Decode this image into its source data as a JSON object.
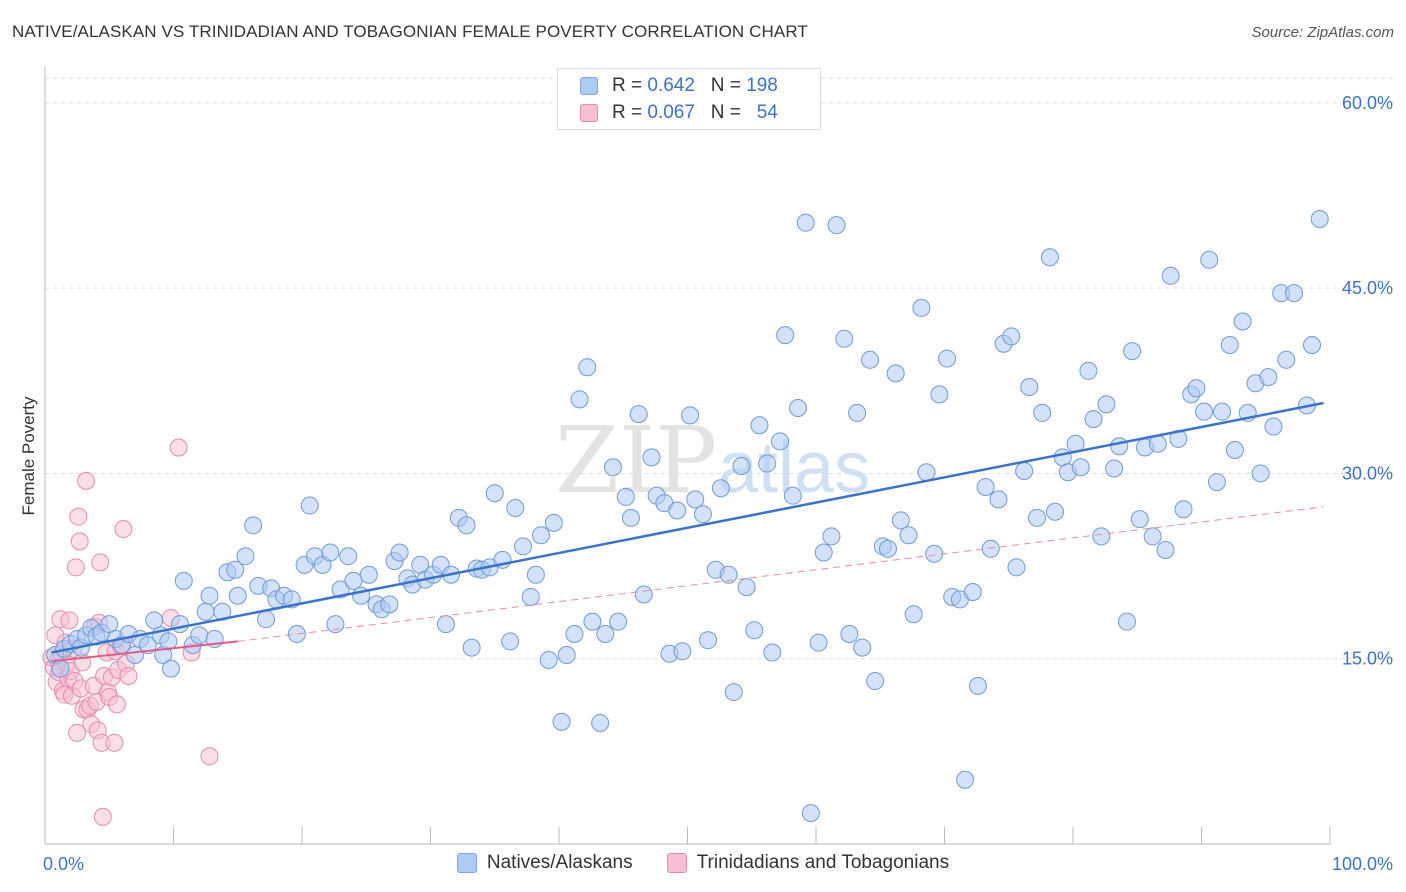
{
  "header": {
    "title": "NATIVE/ALASKAN VS TRINIDADIAN AND TOBAGONIAN FEMALE POVERTY CORRELATION CHART",
    "source": "Source: ZipAtlas.com"
  },
  "legend": {
    "rows": [
      {
        "r_label": "R =",
        "r_value": "0.642",
        "n_label": "N =",
        "n_value": "198",
        "color": "#aecbf2",
        "border": "#7ea6e0"
      },
      {
        "r_label": "R =",
        "r_value": "0.067",
        "n_label": "N =",
        "n_value": "54",
        "color": "#f7c0d2",
        "border": "#e98aab"
      }
    ]
  },
  "bottom_legend": {
    "items": [
      {
        "label": "Natives/Alaskans",
        "color": "#aecbf2",
        "border": "#7ea6e0"
      },
      {
        "label": "Trinidadians and Tobagonians",
        "color": "#f7c0d2",
        "border": "#e98aab"
      }
    ]
  },
  "watermark": {
    "zip": "ZIP",
    "atlas": "atlas"
  },
  "chart_data": {
    "type": "scatter",
    "title": "NATIVE/ALASKAN VS TRINIDADIAN AND TOBAGONIAN FEMALE POVERTY CORRELATION CHART",
    "xlabel": "",
    "ylabel": "Female Poverty",
    "xlim": [
      0,
      100
    ],
    "ylim": [
      0,
      62.5
    ],
    "x_tick_labels": [
      "0.0%",
      "100.0%"
    ],
    "y_ticks": [
      15,
      30,
      45,
      60
    ],
    "y_tick_labels": [
      "15.0%",
      "30.0%",
      "45.0%",
      "60.0%"
    ],
    "grid": true,
    "legend_position": "top-center",
    "colors": {
      "blue": "#3b73c8",
      "blue_fill": "#aecbf2",
      "pink": "#e05a8a",
      "pink_fill": "#f7c0d2",
      "axis_text": "#3b73c8"
    },
    "series": [
      {
        "name": "Natives/Alaskans",
        "r": 0.642,
        "n": 198,
        "trend": {
          "x": [
            0.5,
            99.5
          ],
          "y": [
            15.5,
            35.7
          ],
          "style": "solid"
        },
        "points": [
          [
            0.8,
            15.3
          ],
          [
            1.2,
            14.2
          ],
          [
            1.5,
            15.8
          ],
          [
            2.0,
            16.2
          ],
          [
            2.5,
            16.6
          ],
          [
            2.8,
            15.9
          ],
          [
            3.2,
            16.9
          ],
          [
            3.6,
            17.5
          ],
          [
            4.0,
            16.8
          ],
          [
            4.4,
            17.1
          ],
          [
            5.0,
            17.8
          ],
          [
            5.5,
            16.6
          ],
          [
            6.0,
            16.1
          ],
          [
            6.5,
            17.0
          ],
          [
            7.0,
            15.3
          ],
          [
            7.4,
            16.6
          ],
          [
            8.0,
            16.1
          ],
          [
            8.5,
            18.1
          ],
          [
            9.0,
            16.9
          ],
          [
            9.2,
            15.3
          ],
          [
            9.6,
            16.4
          ],
          [
            9.8,
            14.2
          ],
          [
            10.5,
            17.8
          ],
          [
            10.8,
            21.3
          ],
          [
            11.5,
            16.1
          ],
          [
            12.0,
            16.9
          ],
          [
            12.5,
            18.8
          ],
          [
            12.8,
            20.1
          ],
          [
            13.2,
            16.6
          ],
          [
            13.8,
            18.8
          ],
          [
            14.2,
            22.0
          ],
          [
            14.8,
            22.2
          ],
          [
            15.0,
            20.1
          ],
          [
            15.6,
            23.3
          ],
          [
            16.2,
            25.8
          ],
          [
            16.6,
            20.9
          ],
          [
            17.2,
            18.2
          ],
          [
            17.6,
            20.7
          ],
          [
            18.0,
            19.8
          ],
          [
            18.6,
            20.1
          ],
          [
            19.2,
            19.8
          ],
          [
            19.6,
            17.0
          ],
          [
            20.2,
            22.6
          ],
          [
            20.6,
            27.4
          ],
          [
            21.0,
            23.3
          ],
          [
            21.6,
            22.6
          ],
          [
            22.2,
            23.6
          ],
          [
            22.6,
            17.8
          ],
          [
            23.0,
            20.6
          ],
          [
            23.6,
            23.3
          ],
          [
            24.0,
            21.3
          ],
          [
            24.6,
            20.1
          ],
          [
            25.2,
            21.8
          ],
          [
            25.8,
            19.4
          ],
          [
            26.2,
            19.0
          ],
          [
            26.8,
            19.4
          ],
          [
            27.2,
            22.9
          ],
          [
            27.6,
            23.6
          ],
          [
            28.2,
            21.5
          ],
          [
            28.6,
            21.0
          ],
          [
            29.2,
            22.6
          ],
          [
            29.6,
            21.4
          ],
          [
            30.2,
            21.8
          ],
          [
            30.8,
            22.6
          ],
          [
            31.2,
            17.8
          ],
          [
            31.6,
            21.8
          ],
          [
            32.2,
            26.4
          ],
          [
            32.8,
            25.8
          ],
          [
            33.2,
            15.9
          ],
          [
            33.6,
            22.3
          ],
          [
            34.0,
            22.2
          ],
          [
            34.6,
            22.4
          ],
          [
            35.0,
            28.4
          ],
          [
            35.6,
            23.0
          ],
          [
            36.2,
            16.4
          ],
          [
            36.6,
            27.2
          ],
          [
            37.2,
            24.1
          ],
          [
            37.8,
            20.0
          ],
          [
            38.2,
            21.8
          ],
          [
            38.6,
            25.0
          ],
          [
            39.2,
            14.9
          ],
          [
            39.6,
            26.0
          ],
          [
            40.2,
            9.9
          ],
          [
            40.6,
            15.3
          ],
          [
            41.2,
            17.0
          ],
          [
            41.6,
            36.0
          ],
          [
            42.2,
            38.6
          ],
          [
            42.6,
            18.0
          ],
          [
            43.2,
            9.8
          ],
          [
            43.6,
            17.0
          ],
          [
            44.2,
            30.5
          ],
          [
            44.6,
            18.0
          ],
          [
            45.2,
            28.1
          ],
          [
            45.6,
            26.4
          ],
          [
            46.2,
            34.8
          ],
          [
            46.6,
            20.2
          ],
          [
            47.2,
            31.3
          ],
          [
            47.6,
            28.2
          ],
          [
            48.2,
            27.6
          ],
          [
            48.6,
            15.4
          ],
          [
            49.2,
            27.0
          ],
          [
            49.6,
            15.6
          ],
          [
            50.2,
            34.7
          ],
          [
            50.6,
            27.9
          ],
          [
            51.2,
            26.7
          ],
          [
            51.6,
            16.5
          ],
          [
            52.2,
            22.2
          ],
          [
            52.6,
            28.8
          ],
          [
            53.2,
            21.8
          ],
          [
            53.6,
            12.3
          ],
          [
            54.2,
            30.6
          ],
          [
            54.6,
            20.8
          ],
          [
            55.2,
            17.3
          ],
          [
            55.6,
            33.9
          ],
          [
            56.2,
            30.8
          ],
          [
            56.6,
            15.5
          ],
          [
            57.2,
            32.6
          ],
          [
            57.6,
            41.2
          ],
          [
            58.2,
            28.2
          ],
          [
            58.6,
            35.3
          ],
          [
            59.2,
            50.3
          ],
          [
            59.6,
            2.5
          ],
          [
            60.2,
            16.3
          ],
          [
            60.6,
            23.6
          ],
          [
            61.2,
            24.9
          ],
          [
            61.6,
            50.1
          ],
          [
            62.2,
            40.9
          ],
          [
            62.6,
            17.0
          ],
          [
            63.2,
            34.9
          ],
          [
            63.6,
            15.9
          ],
          [
            64.2,
            39.2
          ],
          [
            64.6,
            13.2
          ],
          [
            65.2,
            24.1
          ],
          [
            65.6,
            23.9
          ],
          [
            66.2,
            38.1
          ],
          [
            66.6,
            26.2
          ],
          [
            67.2,
            25.0
          ],
          [
            67.6,
            18.6
          ],
          [
            68.2,
            43.4
          ],
          [
            68.6,
            30.1
          ],
          [
            69.2,
            23.5
          ],
          [
            69.6,
            36.4
          ],
          [
            70.2,
            39.3
          ],
          [
            70.6,
            20.0
          ],
          [
            71.2,
            19.8
          ],
          [
            71.6,
            5.2
          ],
          [
            72.2,
            20.4
          ],
          [
            72.6,
            12.8
          ],
          [
            73.2,
            28.9
          ],
          [
            73.6,
            23.9
          ],
          [
            74.2,
            27.9
          ],
          [
            74.6,
            40.5
          ],
          [
            75.2,
            41.1
          ],
          [
            75.6,
            22.4
          ],
          [
            76.2,
            30.2
          ],
          [
            76.6,
            37.0
          ],
          [
            77.2,
            26.4
          ],
          [
            77.6,
            34.9
          ],
          [
            78.2,
            47.5
          ],
          [
            78.6,
            26.9
          ],
          [
            79.2,
            31.3
          ],
          [
            79.6,
            30.1
          ],
          [
            80.2,
            32.4
          ],
          [
            80.6,
            30.5
          ],
          [
            81.2,
            38.3
          ],
          [
            81.6,
            34.4
          ],
          [
            82.2,
            24.9
          ],
          [
            82.6,
            35.6
          ],
          [
            83.2,
            30.4
          ],
          [
            83.6,
            32.2
          ],
          [
            84.2,
            18.0
          ],
          [
            84.6,
            39.9
          ],
          [
            85.2,
            26.3
          ],
          [
            85.6,
            32.1
          ],
          [
            86.2,
            24.9
          ],
          [
            86.6,
            32.4
          ],
          [
            87.2,
            23.8
          ],
          [
            87.6,
            46.0
          ],
          [
            88.2,
            32.8
          ],
          [
            88.6,
            27.1
          ],
          [
            89.2,
            36.4
          ],
          [
            89.6,
            36.9
          ],
          [
            90.2,
            35.0
          ],
          [
            90.6,
            47.3
          ],
          [
            91.2,
            29.3
          ],
          [
            91.6,
            35.0
          ],
          [
            92.2,
            40.4
          ],
          [
            92.6,
            31.9
          ],
          [
            93.2,
            42.3
          ],
          [
            93.6,
            34.9
          ],
          [
            94.2,
            37.3
          ],
          [
            94.6,
            30.0
          ],
          [
            95.2,
            37.8
          ],
          [
            95.6,
            33.8
          ],
          [
            96.2,
            44.6
          ],
          [
            96.6,
            39.2
          ],
          [
            97.2,
            44.6
          ],
          [
            98.2,
            35.5
          ],
          [
            98.6,
            40.4
          ],
          [
            99.2,
            50.6
          ]
        ]
      },
      {
        "name": "Trinidadians and Tobagonians",
        "r": 0.067,
        "n": 54,
        "trend": {
          "x": [
            0.5,
            15.0
          ],
          "y": [
            14.8,
            16.4
          ],
          "style": "solid"
        },
        "trend_extended": {
          "x": [
            15.0,
            99.5
          ],
          "y": [
            16.4,
            27.3
          ],
          "style": "dashed"
        },
        "points": [
          [
            0.5,
            15.1
          ],
          [
            0.7,
            14.3
          ],
          [
            0.8,
            16.9
          ],
          [
            0.9,
            13.1
          ],
          [
            1.0,
            14.8
          ],
          [
            1.1,
            13.9
          ],
          [
            1.2,
            18.2
          ],
          [
            1.3,
            15.4
          ],
          [
            1.4,
            12.4
          ],
          [
            1.5,
            12.1
          ],
          [
            1.6,
            16.3
          ],
          [
            1.7,
            14.6
          ],
          [
            1.8,
            13.4
          ],
          [
            1.9,
            18.1
          ],
          [
            2.0,
            14.0
          ],
          [
            2.1,
            12.0
          ],
          [
            2.2,
            15.8
          ],
          [
            2.3,
            13.2
          ],
          [
            2.4,
            22.4
          ],
          [
            2.5,
            9.0
          ],
          [
            2.6,
            26.5
          ],
          [
            2.7,
            24.5
          ],
          [
            2.8,
            12.6
          ],
          [
            2.9,
            14.7
          ],
          [
            3.0,
            10.9
          ],
          [
            3.2,
            29.4
          ],
          [
            3.3,
            10.9
          ],
          [
            3.5,
            11.2
          ],
          [
            3.6,
            9.7
          ],
          [
            3.8,
            12.8
          ],
          [
            3.9,
            17.6
          ],
          [
            4.0,
            11.5
          ],
          [
            4.1,
            9.2
          ],
          [
            4.2,
            17.9
          ],
          [
            4.3,
            22.8
          ],
          [
            4.4,
            8.2
          ],
          [
            4.5,
            2.2
          ],
          [
            4.6,
            13.6
          ],
          [
            4.8,
            15.5
          ],
          [
            4.9,
            12.3
          ],
          [
            5.0,
            11.9
          ],
          [
            5.2,
            13.5
          ],
          [
            5.4,
            8.2
          ],
          [
            5.5,
            15.6
          ],
          [
            5.6,
            11.3
          ],
          [
            5.7,
            14.1
          ],
          [
            5.9,
            16.1
          ],
          [
            6.1,
            25.5
          ],
          [
            6.3,
            14.6
          ],
          [
            6.5,
            13.6
          ],
          [
            9.8,
            18.3
          ],
          [
            10.4,
            32.1
          ],
          [
            11.4,
            15.5
          ],
          [
            12.8,
            7.1
          ]
        ]
      }
    ]
  }
}
